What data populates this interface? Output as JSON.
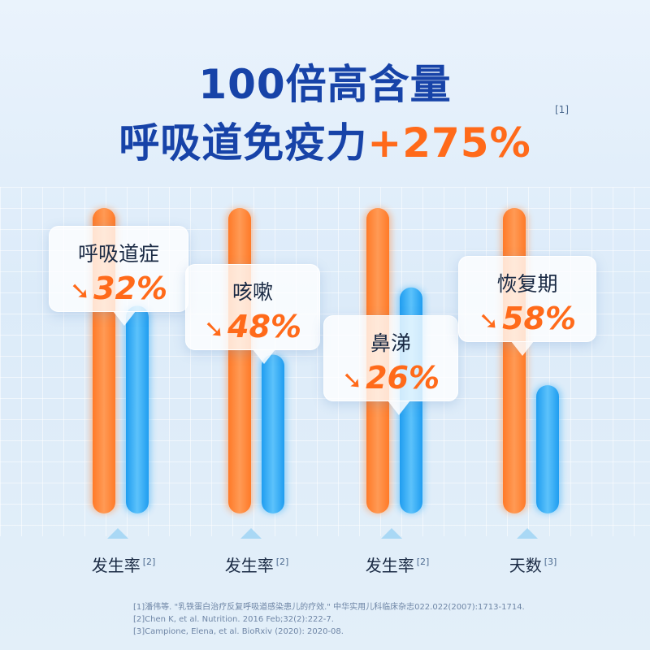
{
  "title": {
    "line1": "100倍高含量",
    "line2_main": "呼吸道免疫力",
    "line2_accent": "+275%",
    "ref": "[1]"
  },
  "callouts": [
    {
      "label": "呼吸道症",
      "pct": "32%"
    },
    {
      "label": "咳嗽",
      "pct": "48%"
    },
    {
      "label": "鼻涕",
      "pct": "26%"
    },
    {
      "label": "恢复期",
      "pct": "58%"
    }
  ],
  "categories": [
    {
      "label": "发生率",
      "ref": "[2]"
    },
    {
      "label": "发生率",
      "ref": "[2]"
    },
    {
      "label": "发生率",
      "ref": "[2]"
    },
    {
      "label": "天数",
      "ref": "[3]"
    }
  ],
  "references": [
    "[1]潘伟等. \"乳铁蛋白治疗反复呼吸道感染患儿的疗效.\" 中华实用儿科临床杂志022.022(2007):1713-1714.",
    "[2]Chen K, et al.  Nutrition. 2016 Feb;32(2):222-7.",
    "[3]Campione, Elena, et al. BioRxiv (2020): 2020-08."
  ],
  "colors": {
    "title": "#1743a8",
    "accent": "#ff6a1a",
    "bar_control": "#ff8a3d",
    "bar_treated": "#2eaaf5"
  },
  "chart_data": {
    "type": "bar",
    "categories": [
      "呼吸道症 发生率",
      "咳嗽 发生率",
      "鼻涕 发生率",
      "恢复期 天数"
    ],
    "series": [
      {
        "values": [
          100,
          100,
          100,
          100
        ]
      },
      {
        "values": [
          68,
          52,
          74,
          42
        ]
      }
    ],
    "reductions": [
      "32%",
      "48%",
      "26%",
      "58%"
    ],
    "ylim": [
      0,
      100
    ],
    "grid": true,
    "legend": "none"
  }
}
